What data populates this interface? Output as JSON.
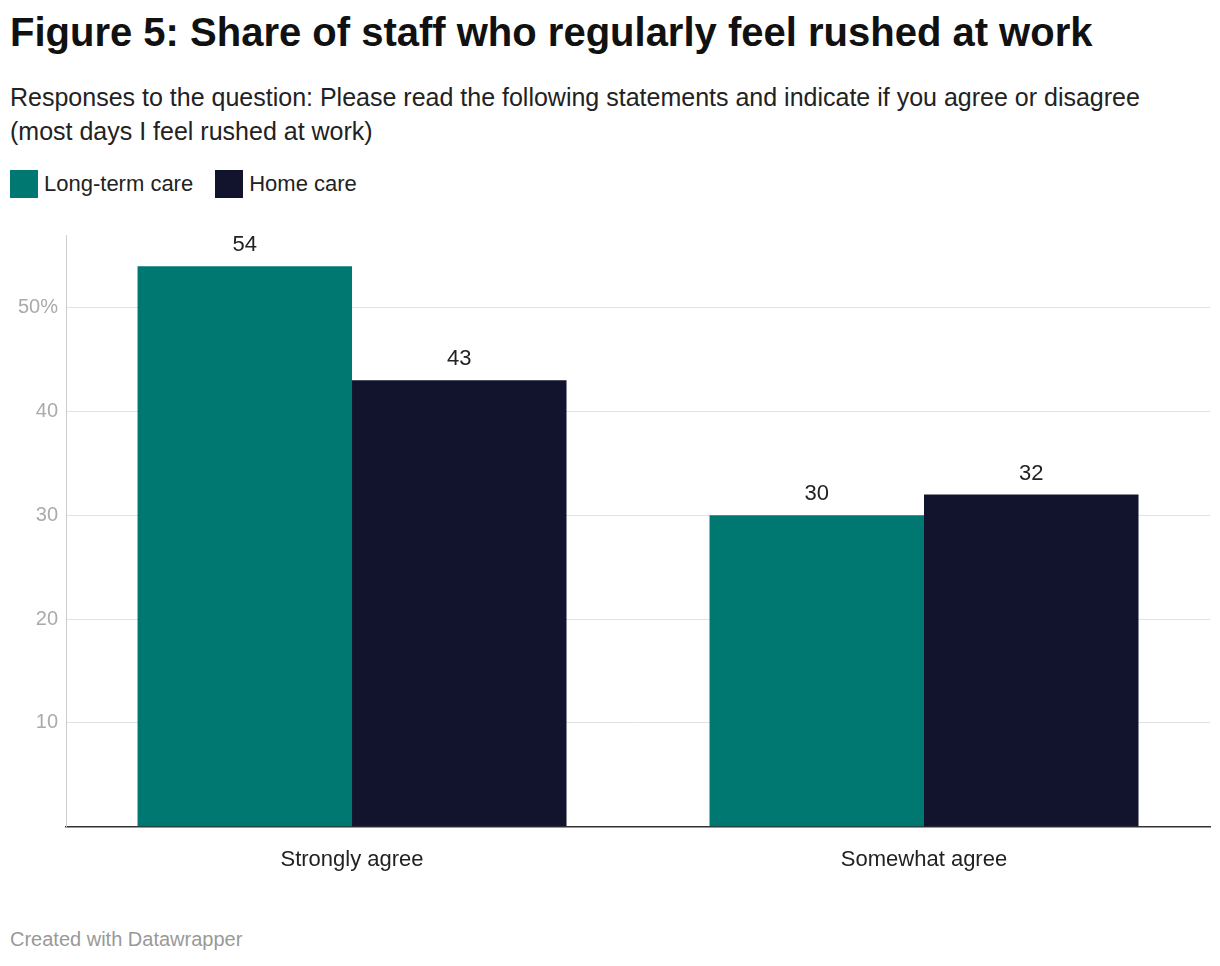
{
  "chart_data": {
    "type": "bar",
    "title": "Figure 5: Share of staff who regularly feel rushed at work",
    "subtitle": "Responses to the question: Please read the following statements and indicate if you agree or disagree (most days I feel rushed at work)",
    "source": "Created with Datawrapper",
    "categories": [
      "Strongly agree",
      "Somewhat agree"
    ],
    "series": [
      {
        "name": "Long-term care",
        "color": "#007872",
        "values": [
          54,
          30
        ]
      },
      {
        "name": "Home care",
        "color": "#12142e",
        "values": [
          43,
          32
        ]
      }
    ],
    "ylim": [
      0,
      57
    ],
    "yticks": [
      10,
      20,
      30,
      40,
      {
        "value": 50,
        "label": "50%"
      }
    ],
    "grid": true,
    "legend": "top-left",
    "data_labels": true
  }
}
